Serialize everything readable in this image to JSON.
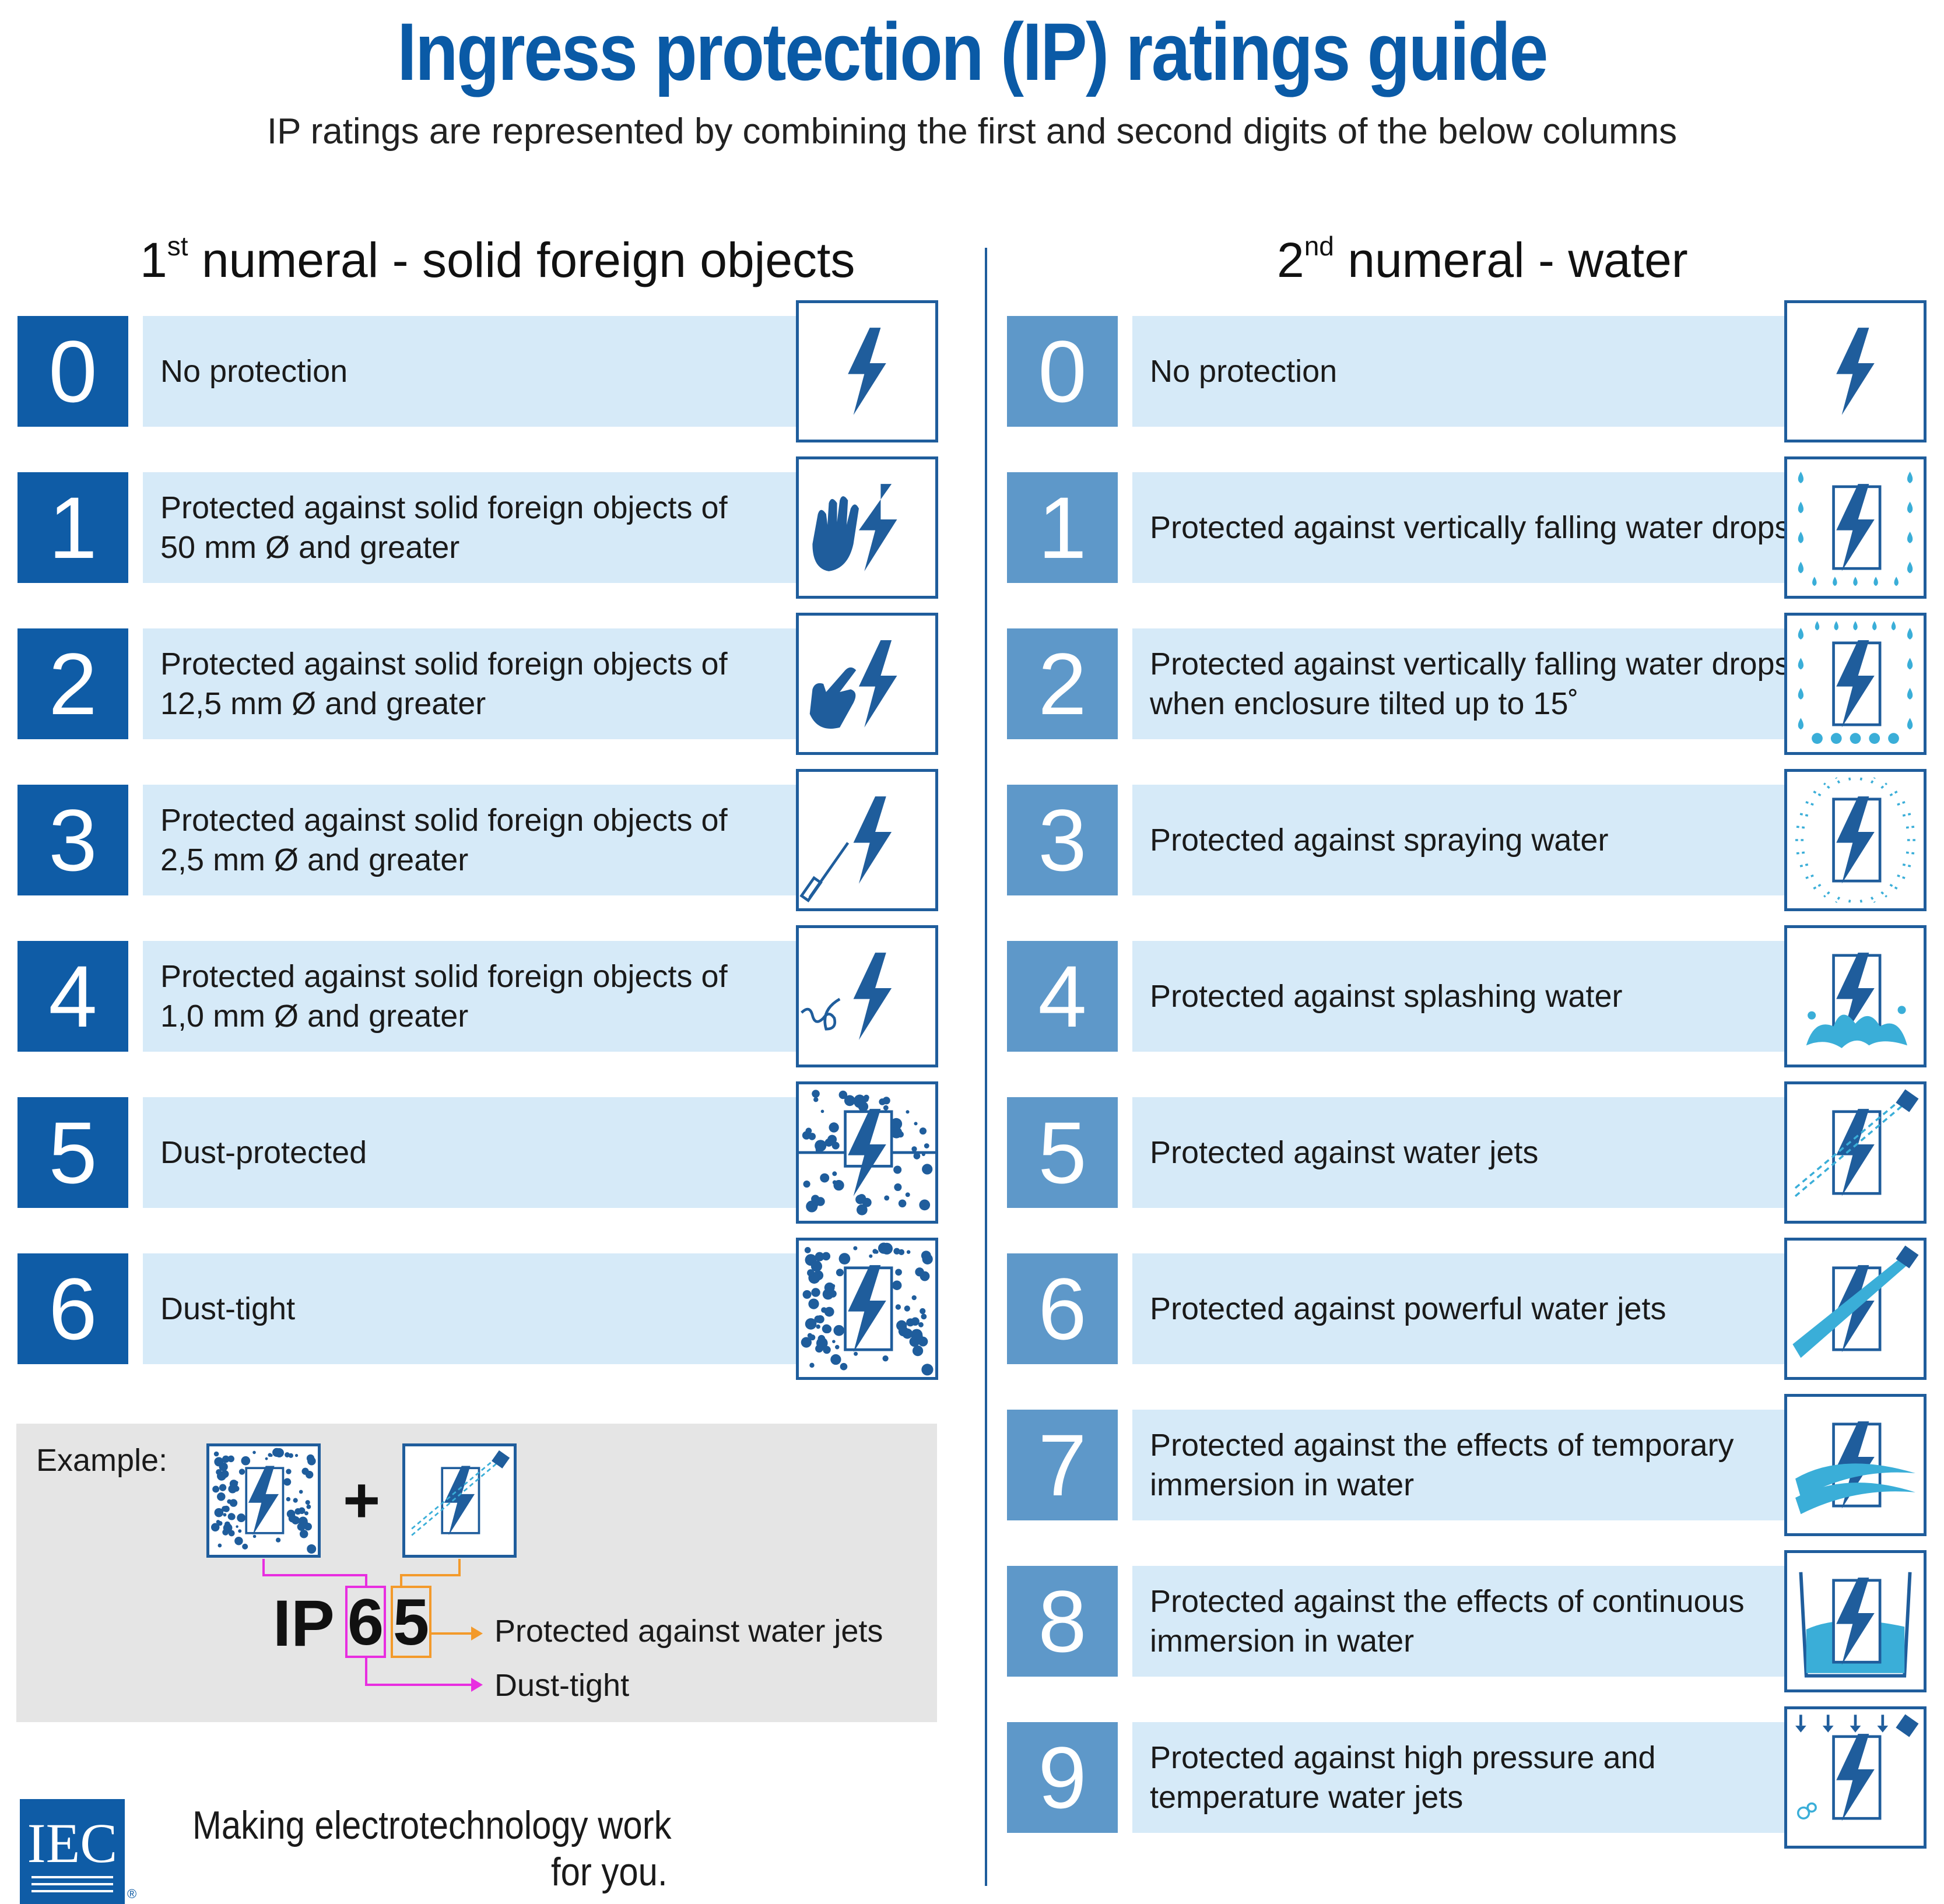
{
  "header": {
    "title": "Ingress protection (IP) ratings guide",
    "subtitle": "IP ratings are represented by combining the first and second digits of the below columns"
  },
  "solids": {
    "heading_ordinal": "1",
    "heading_suffix": "st",
    "heading_text": " numeral - solid foreign objects",
    "rows": [
      {
        "digit": "0",
        "line1": "No protection",
        "line2": "",
        "icon": "bolt-icon"
      },
      {
        "digit": "1",
        "line1": "Protected against solid foreign objects of",
        "line2": "50 mm Ø and greater",
        "icon": "hand-icon"
      },
      {
        "digit": "2",
        "line1": "Protected against solid foreign objects of",
        "line2": "12,5 mm Ø and greater",
        "icon": "finger-icon"
      },
      {
        "digit": "3",
        "line1": "Protected against solid foreign objects of",
        "line2": "2,5 mm Ø and greater",
        "icon": "screwdriver-icon"
      },
      {
        "digit": "4",
        "line1": "Protected against solid foreign objects of",
        "line2": "1,0 mm Ø and greater",
        "icon": "wire-icon"
      },
      {
        "digit": "5",
        "line1": "Dust-protected",
        "line2": "",
        "icon": "dust-protected-icon"
      },
      {
        "digit": "6",
        "line1": "Dust-tight",
        "line2": "",
        "icon": "dust-tight-icon"
      }
    ]
  },
  "water": {
    "heading_ordinal": "2",
    "heading_suffix": "nd",
    "heading_text": " numeral - water",
    "rows": [
      {
        "digit": "0",
        "line1": "No protection",
        "line2": "",
        "icon": "bolt-icon"
      },
      {
        "digit": "1",
        "line1": "Protected against vertically falling water drops",
        "line2": "",
        "icon": "vertical-drops-icon"
      },
      {
        "digit": "2",
        "line1": "Protected against vertically falling water drops",
        "line2": "when enclosure tilted up to 15˚",
        "icon": "tilted-drops-icon"
      },
      {
        "digit": "3",
        "line1": "Protected against spraying water",
        "line2": "",
        "icon": "spray-icon"
      },
      {
        "digit": "4",
        "line1": "Protected against splashing water",
        "line2": "",
        "icon": "splash-icon"
      },
      {
        "digit": "5",
        "line1": "Protected against water jets",
        "line2": "",
        "icon": "water-jet-icon"
      },
      {
        "digit": "6",
        "line1": "Protected against powerful water jets",
        "line2": "",
        "icon": "powerful-jet-icon"
      },
      {
        "digit": "7",
        "line1": "Protected against the effects of temporary",
        "line2": "immersion in water",
        "icon": "temporary-immersion-icon"
      },
      {
        "digit": "8",
        "line1": "Protected against the effects of continuous",
        "line2": "immersion in water",
        "icon": "continuous-immersion-icon"
      },
      {
        "digit": "9",
        "line1": "Protected against high pressure and",
        "line2": "temperature water jets",
        "icon": "high-pressure-jet-icon"
      }
    ]
  },
  "example": {
    "label": "Example:",
    "plus": "+",
    "prefix": "IP",
    "first_digit": "6",
    "second_digit": "5",
    "second_meaning": "Protected against water jets",
    "first_meaning": "Dust-tight",
    "first_color": "#e82ee0",
    "second_color": "#f39a2b"
  },
  "footer": {
    "logo_text": "IEC",
    "registered": "®",
    "tagline_line1": "Making  electrotechnology work",
    "tagline_line2": "for you."
  },
  "colors": {
    "title_blue": "#0a5aa6",
    "left_number_bg": "#0f5ca6",
    "right_number_bg": "#5e98c9",
    "row_bg": "#d6eaf8",
    "icon_blue": "#1f5d9c",
    "water_light_blue": "#3aaed8"
  }
}
